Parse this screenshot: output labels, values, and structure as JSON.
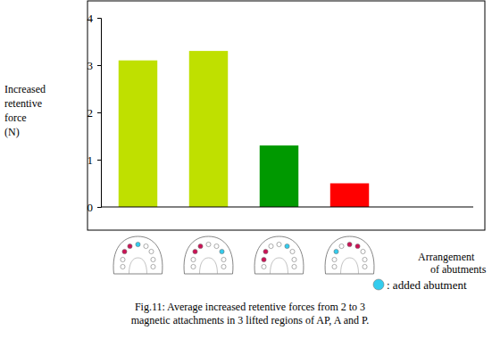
{
  "chart_data": {
    "type": "bar",
    "title": "Fig.11: Average increased retentive forces from 2 to 3 magnetic attachments in 3 lifted regions of AP, A and P.",
    "y_label": "Increased retentive force (N)",
    "x_label": "Arrangement of abutments",
    "annotations": [
      ": added abutment"
    ],
    "categories": [
      null,
      null,
      null,
      null
    ],
    "values": [
      3.1,
      3.3,
      1.3,
      0.5
    ],
    "colors": [
      "#bfe000",
      "#bfe000",
      "#009900",
      "#ff0000"
    ],
    "ylim": [
      0,
      4
    ],
    "yticks": [
      0,
      1,
      2,
      3,
      4
    ],
    "grid": false
  }
}
